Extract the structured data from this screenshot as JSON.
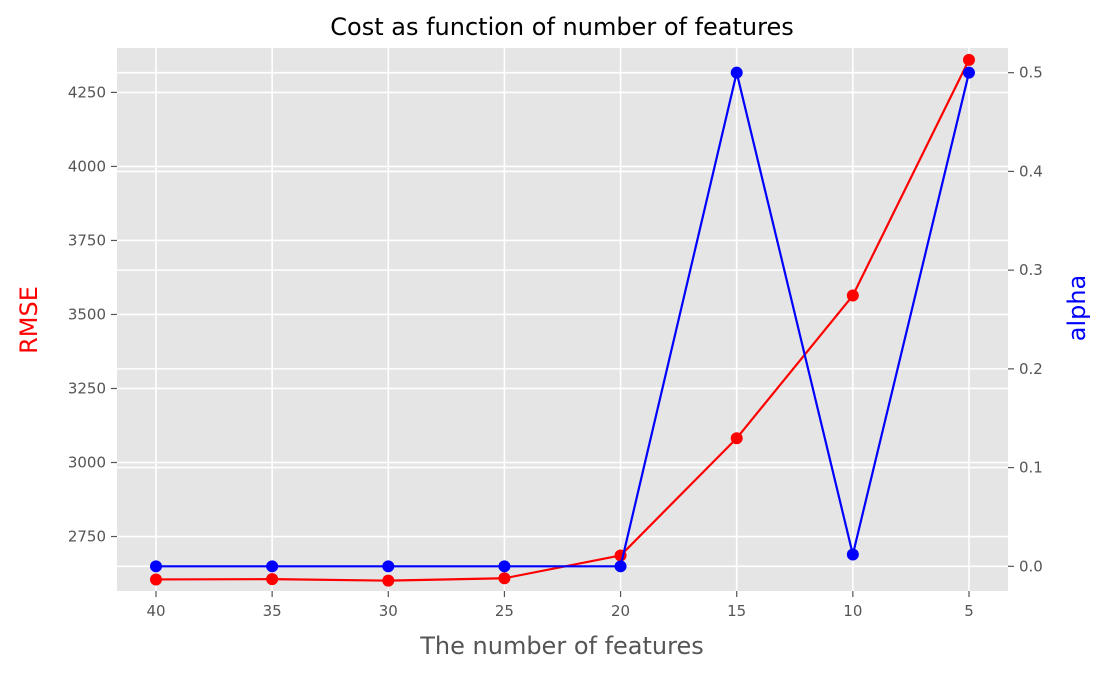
{
  "chart_data": {
    "type": "line",
    "title": "Cost as function of number of features",
    "xlabel": "The number of features",
    "ylabel_left": "RMSE",
    "ylabel_right": "alpha",
    "x": [
      40,
      35,
      30,
      25,
      20,
      15,
      10,
      5
    ],
    "x_ticks": [
      "40",
      "35",
      "30",
      "25",
      "20",
      "15",
      "10",
      "5"
    ],
    "x_axis_reversed": true,
    "grid": true,
    "series": [
      {
        "name": "RMSE",
        "axis": "left",
        "color": "#ff0000",
        "values": [
          2605,
          2606,
          2601,
          2609,
          2686,
          3082,
          3564,
          4360
        ]
      },
      {
        "name": "alpha",
        "axis": "right",
        "color": "#0000ff",
        "values": [
          0.0,
          0.0,
          0.0,
          0.0,
          0.0,
          0.5,
          0.012,
          0.5
        ]
      }
    ],
    "y_left": {
      "ticks": [
        2750,
        3000,
        3250,
        3500,
        3750,
        4000,
        4250
      ],
      "tick_labels": [
        "2750",
        "3000",
        "3250",
        "3500",
        "3750",
        "4000",
        "4250"
      ],
      "range": [
        2566,
        4400
      ],
      "label_color": "#ff0000"
    },
    "y_right": {
      "ticks": [
        0.0,
        0.1,
        0.2,
        0.3,
        0.4,
        0.5
      ],
      "tick_labels": [
        "0.0",
        "0.1",
        "0.2",
        "0.3",
        "0.4",
        "0.5"
      ],
      "range": [
        -0.025,
        0.525
      ],
      "label_color": "#0000ff"
    }
  }
}
